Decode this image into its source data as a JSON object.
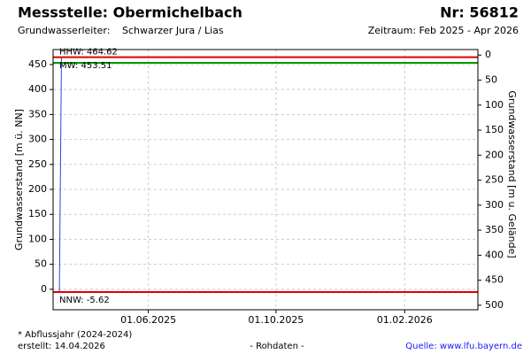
{
  "chart_data": {
    "type": "line",
    "title": "Messstelle: Obermichelbach",
    "number": "Nr: 56812",
    "aquifer_label": "Grundwasserleiter:",
    "aquifer": "Schwarzer Jura / Lias",
    "period": "Zeitraum: Feb 2025 - Apr 2026",
    "ylabel": "Grundwasserstand [m ü. NN]",
    "y2label": "Grundwasserstand [m u. Gelände]",
    "footnote": "* Abflussjahr (2024-2024)",
    "created": "erstellt:  14.04.2026",
    "data_note": "- Rohdaten -",
    "source": "Quelle: www.lfu.bayern.de",
    "xlim": [
      "2025-03-02",
      "2026-04-12"
    ],
    "xticks": [
      {
        "value": "2025-06-01",
        "label": "01.06.2025"
      },
      {
        "value": "2025-10-01",
        "label": "01.10.2025"
      },
      {
        "value": "2026-02-01",
        "label": "01.02.2026"
      }
    ],
    "ylim": [
      -41,
      480
    ],
    "yticks": [
      0,
      50,
      100,
      150,
      200,
      250,
      300,
      350,
      400,
      450
    ],
    "y2lim": [
      509,
      -11
    ],
    "y2ticks": [
      0,
      50,
      100,
      150,
      200,
      250,
      300,
      350,
      400,
      450,
      500
    ],
    "grid": true,
    "reference_lines": [
      {
        "label": "HHW: 464.62",
        "value": 464.62,
        "color": "#e00000"
      },
      {
        "label": "MW: 453.51",
        "value": 453.51,
        "color": "#009900"
      },
      {
        "label": "NNW: -5.62",
        "value": -5.62,
        "color": "#e00000"
      }
    ],
    "series": [
      {
        "name": "Grundwasserstand",
        "color": "#3040e0",
        "x": [
          "2025-03-08",
          "2025-03-10"
        ],
        "values": [
          -4,
          464
        ]
      }
    ]
  }
}
